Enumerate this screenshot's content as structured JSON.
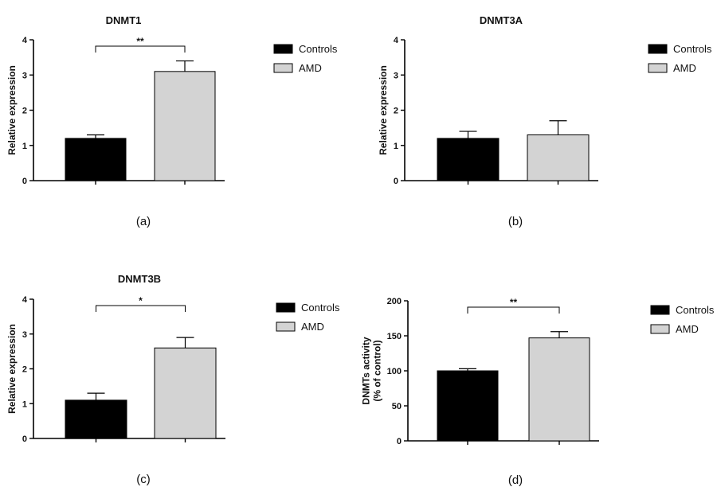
{
  "colors": {
    "Controls": "#000000",
    "AMD": "#d3d3d3"
  },
  "chart_data": [
    {
      "type": "bar",
      "title": "DNMT1",
      "caption": "(a)",
      "ylabel": "Relative expression",
      "ylim": [
        0,
        4
      ],
      "yticks": [
        0,
        1,
        2,
        3,
        4
      ],
      "categories": [
        "Controls",
        "AMD"
      ],
      "values": [
        1.2,
        3.1
      ],
      "errors": [
        0.1,
        0.3
      ],
      "significance": "**",
      "legend": [
        "Controls",
        "AMD"
      ],
      "legend_position": "right"
    },
    {
      "type": "bar",
      "title": "DNMT3A",
      "caption": "(b)",
      "ylabel": "Relative expression",
      "ylim": [
        0,
        4
      ],
      "yticks": [
        0,
        1,
        2,
        3,
        4
      ],
      "categories": [
        "Controls",
        "AMD"
      ],
      "values": [
        1.2,
        1.3
      ],
      "errors": [
        0.2,
        0.4
      ],
      "significance": "",
      "legend": [
        "Controls",
        "AMD"
      ],
      "legend_position": "right"
    },
    {
      "type": "bar",
      "title": "DNMT3B",
      "caption": "(c)",
      "ylabel": "Relative expression",
      "ylim": [
        0,
        4
      ],
      "yticks": [
        0,
        1,
        2,
        3,
        4
      ],
      "categories": [
        "Controls",
        "AMD"
      ],
      "values": [
        1.1,
        2.6
      ],
      "errors": [
        0.2,
        0.3
      ],
      "significance": "*",
      "legend": [
        "Controls",
        "AMD"
      ],
      "legend_position": "right"
    },
    {
      "type": "bar",
      "title": "",
      "caption": "(d)",
      "ylabel": "DNMTs activity\n(% of control)",
      "ylim": [
        0,
        200
      ],
      "yticks": [
        0,
        50,
        100,
        150,
        200
      ],
      "categories": [
        "Controls",
        "AMD"
      ],
      "values": [
        100,
        147
      ],
      "errors": [
        3,
        9
      ],
      "significance": "**",
      "legend": [
        "Controls",
        "AMD"
      ],
      "legend_position": "right"
    }
  ]
}
